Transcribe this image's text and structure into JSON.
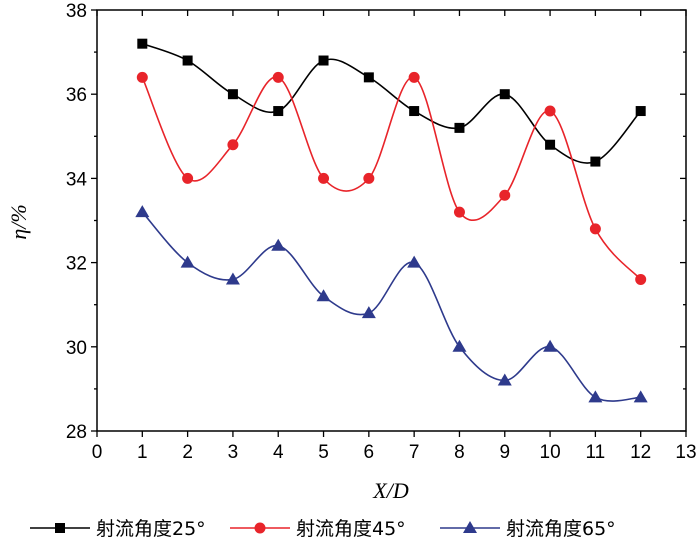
{
  "chart_data": {
    "type": "line",
    "title": "",
    "xlabel": "X/D",
    "ylabel": "η/%",
    "xlim": [
      0,
      13
    ],
    "ylim": [
      28,
      38
    ],
    "xticks": [
      0,
      1,
      2,
      3,
      4,
      5,
      6,
      7,
      8,
      9,
      10,
      11,
      12,
      13
    ],
    "yticks": [
      28,
      30,
      32,
      34,
      36,
      38
    ],
    "grid": false,
    "legend_position": "bottom",
    "x": [
      1,
      2,
      3,
      4,
      5,
      6,
      7,
      8,
      9,
      10,
      11,
      12
    ],
    "series": [
      {
        "name": "射流角度25°",
        "color": "#000000",
        "marker": "square",
        "values": [
          37.2,
          36.8,
          36.0,
          35.6,
          36.8,
          36.4,
          35.6,
          35.2,
          36.0,
          34.8,
          34.4,
          35.6
        ]
      },
      {
        "name": "射流角度45°",
        "color": "#e8242a",
        "marker": "circle",
        "values": [
          36.4,
          34.0,
          34.8,
          36.4,
          34.0,
          34.0,
          36.4,
          33.2,
          33.6,
          35.6,
          32.8,
          31.6
        ]
      },
      {
        "name": "射流角度65°",
        "color": "#2e3a8c",
        "marker": "triangle",
        "values": [
          33.2,
          32.0,
          31.6,
          32.4,
          31.2,
          30.8,
          32.0,
          30.0,
          29.2,
          30.0,
          28.8,
          28.8
        ]
      }
    ]
  }
}
